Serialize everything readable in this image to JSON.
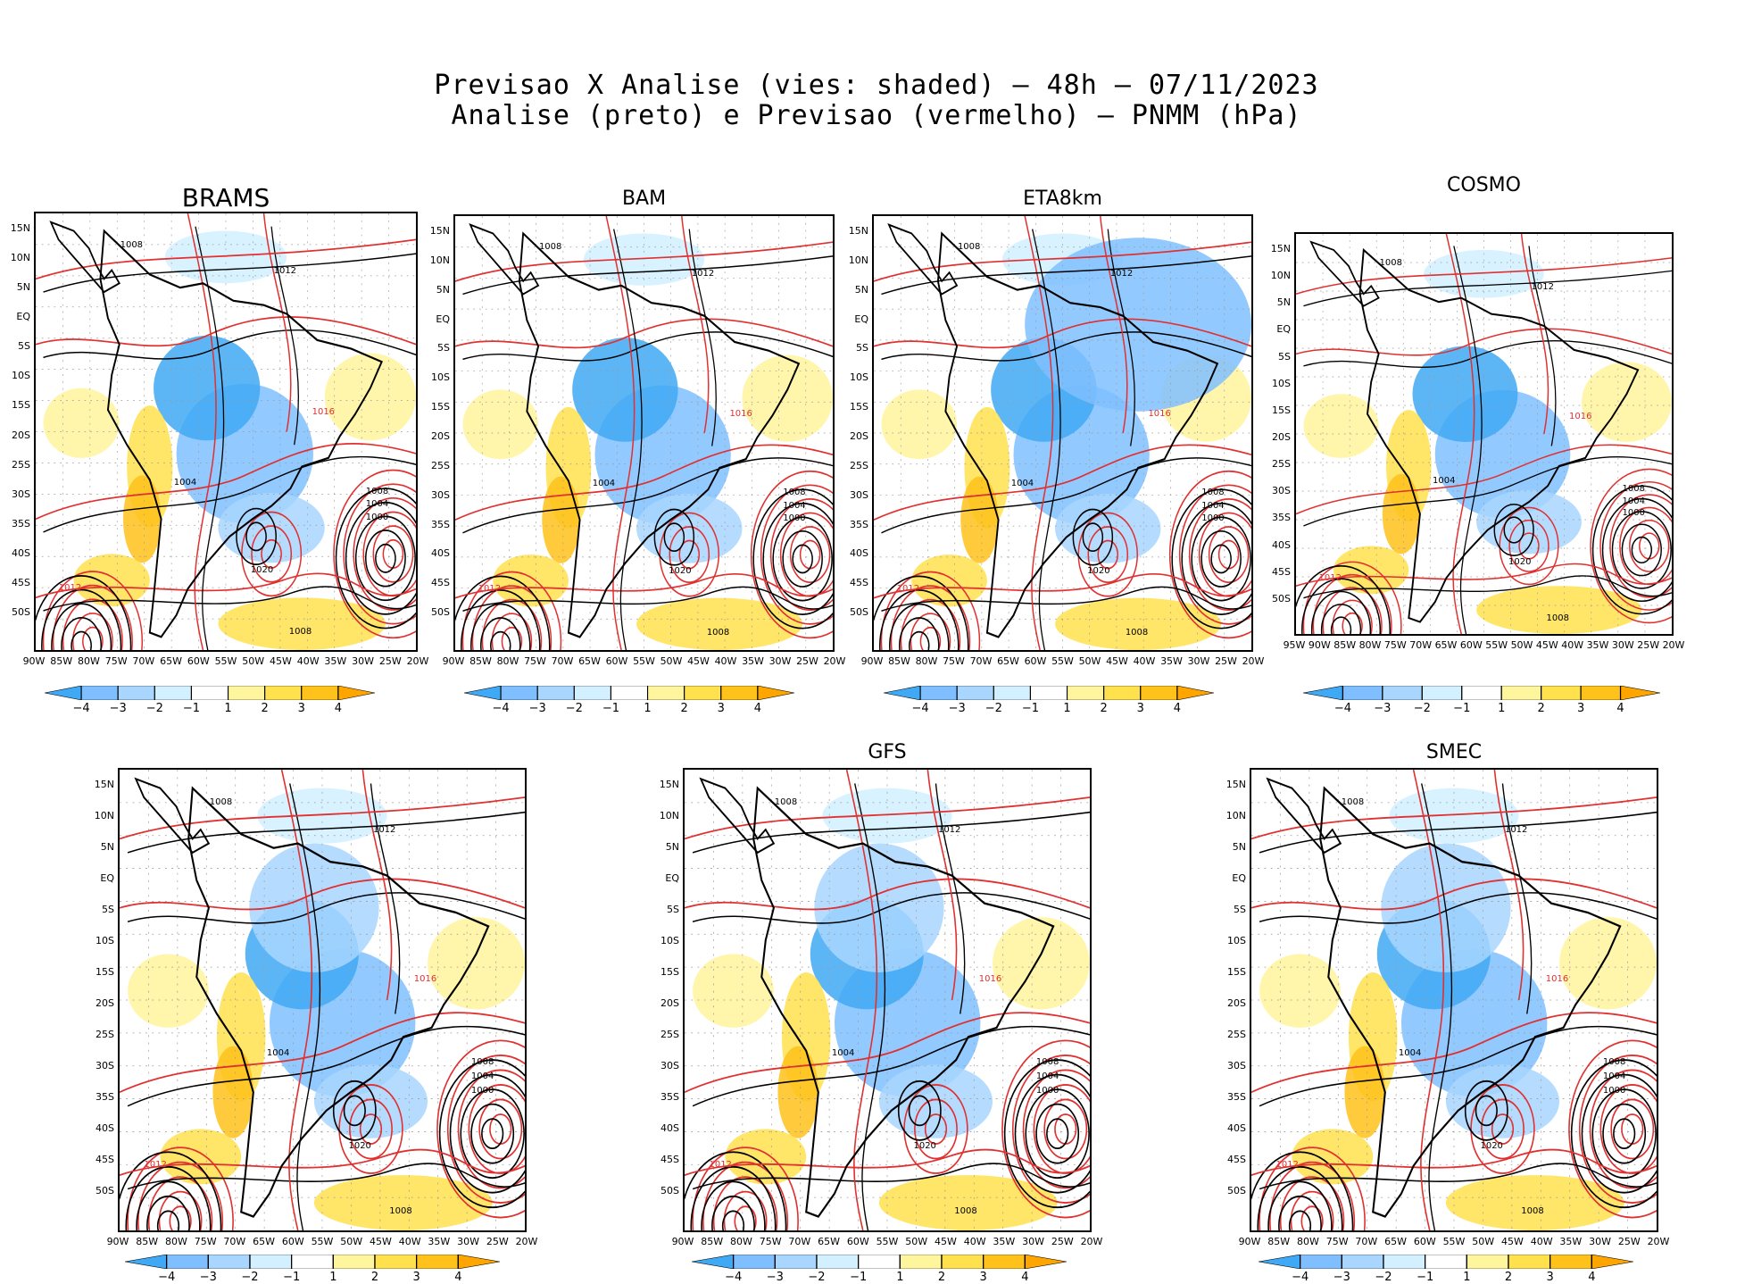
{
  "title": {
    "line1": "Previsao X Analise (vies: shaded) – 48h – 07/11/2023",
    "line2": "Analise (preto) e Previsao (vermelho) – PNMM (hPa)"
  },
  "panels": [
    {
      "name": "BRAMS",
      "lat": [
        "15N",
        "10N",
        "5N",
        "EQ",
        "5S",
        "10S",
        "15S",
        "20S",
        "25S",
        "30S",
        "35S",
        "40S",
        "45S",
        "50S"
      ],
      "lon": [
        "90W",
        "85W",
        "80W",
        "75W",
        "70W",
        "65W",
        "60W",
        "55W",
        "50W",
        "45W",
        "40W",
        "35W",
        "30W",
        "25W",
        "20W"
      ]
    },
    {
      "name": "BAM",
      "lat": [
        "15N",
        "10N",
        "5N",
        "EQ",
        "5S",
        "10S",
        "15S",
        "20S",
        "25S",
        "30S",
        "35S",
        "40S",
        "45S",
        "50S"
      ],
      "lon": [
        "90W",
        "85W",
        "80W",
        "75W",
        "70W",
        "65W",
        "60W",
        "55W",
        "50W",
        "45W",
        "40W",
        "35W",
        "30W",
        "25W",
        "20W"
      ]
    },
    {
      "name": "ETA8km",
      "lat": [
        "15N",
        "10N",
        "5N",
        "EQ",
        "5S",
        "10S",
        "15S",
        "20S",
        "25S",
        "30S",
        "35S",
        "40S",
        "45S",
        "50S"
      ],
      "lon": [
        "90W",
        "85W",
        "80W",
        "75W",
        "70W",
        "65W",
        "60W",
        "55W",
        "50W",
        "45W",
        "40W",
        "35W",
        "30W",
        "25W",
        "20W"
      ]
    },
    {
      "name": "COSMO",
      "lat": [
        "15N",
        "10N",
        "5N",
        "EQ",
        "5S",
        "10S",
        "15S",
        "20S",
        "25S",
        "30S",
        "35S",
        "40S",
        "45S",
        "50S"
      ],
      "lon": [
        "95W",
        "90W",
        "85W",
        "80W",
        "75W",
        "70W",
        "65W",
        "60W",
        "55W",
        "50W",
        "45W",
        "40W",
        "35W",
        "30W",
        "25W",
        "20W"
      ]
    },
    {
      "name": "",
      "lat": [
        "15N",
        "10N",
        "5N",
        "EQ",
        "5S",
        "10S",
        "15S",
        "20S",
        "25S",
        "30S",
        "35S",
        "40S",
        "45S",
        "50S"
      ],
      "lon": [
        "90W",
        "85W",
        "80W",
        "75W",
        "70W",
        "65W",
        "60W",
        "55W",
        "50W",
        "45W",
        "40W",
        "35W",
        "30W",
        "25W",
        "20W"
      ]
    },
    {
      "name": "GFS",
      "lat": [
        "15N",
        "10N",
        "5N",
        "EQ",
        "5S",
        "10S",
        "15S",
        "20S",
        "25S",
        "30S",
        "35S",
        "40S",
        "45S",
        "50S"
      ],
      "lon": [
        "90W",
        "85W",
        "80W",
        "75W",
        "70W",
        "65W",
        "60W",
        "55W",
        "50W",
        "45W",
        "40W",
        "35W",
        "30W",
        "25W",
        "20W"
      ]
    },
    {
      "name": "SMEC",
      "lat": [
        "15N",
        "10N",
        "5N",
        "EQ",
        "5S",
        "10S",
        "15S",
        "20S",
        "25S",
        "30S",
        "35S",
        "40S",
        "45S",
        "50S"
      ],
      "lon": [
        "90W",
        "85W",
        "80W",
        "75W",
        "70W",
        "65W",
        "60W",
        "55W",
        "50W",
        "45W",
        "40W",
        "35W",
        "30W",
        "25W",
        "20W"
      ]
    }
  ],
  "colorbar": {
    "labels": [
      "−4",
      "−3",
      "−2",
      "−1",
      "1",
      "2",
      "3",
      "4"
    ],
    "colors": [
      "#3fa9f5",
      "#7fbfff",
      "#a8d6ff",
      "#d2f0ff",
      "#ffffff",
      "#fff59d",
      "#ffe14d",
      "#ffc21a",
      "#ffa500"
    ]
  },
  "isobars": {
    "black": [
      "1008",
      "1012",
      "1016",
      "1004",
      "1000",
      "1020"
    ],
    "red": [
      "1008",
      "1012",
      "1016",
      "1004",
      "1000",
      "1020"
    ]
  },
  "colors": {
    "analysis": "#000000",
    "forecast": "#e03030",
    "positive_bias": "#ffc21a",
    "negative_bias": "#3fa9f5"
  }
}
